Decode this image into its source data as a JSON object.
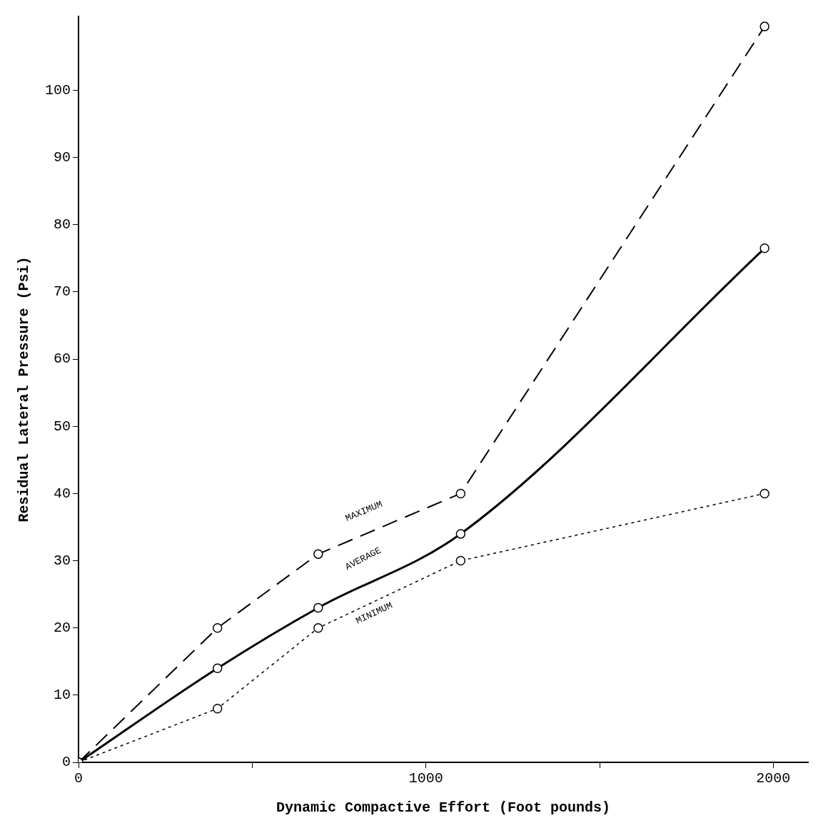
{
  "chart_data": {
    "type": "line",
    "xlabel": "Dynamic Compactive Effort (Foot pounds)",
    "ylabel": "Residual Lateral Pressure (Psi)",
    "xlim": [
      0,
      2100
    ],
    "xticks": [
      0,
      {
        "value": 500,
        "label": null
      },
      1000,
      {
        "value": 1500,
        "label": null
      },
      2000
    ],
    "ylim": [
      0,
      111
    ],
    "yticks": [
      0,
      10,
      20,
      30,
      40,
      50,
      60,
      70,
      80,
      90,
      100
    ],
    "grid": false,
    "legend": false,
    "marker": "circle",
    "series": [
      {
        "name": "MAXIMUM",
        "color": "#000000",
        "line_style": "dashed",
        "x": [
          0,
          400,
          690,
          1100,
          1975
        ],
        "values": [
          0,
          20,
          31,
          40,
          109.5
        ]
      },
      {
        "name": "AVERAGE",
        "color": "#000000",
        "line_style": "solid",
        "x": [
          0,
          400,
          690,
          1100,
          1975
        ],
        "values": [
          0,
          14,
          23,
          34,
          76.5
        ]
      },
      {
        "name": "MINIMUM",
        "color": "#000000",
        "line_style": "dotted",
        "x": [
          0,
          400,
          690,
          1100,
          1975
        ],
        "values": [
          0,
          8,
          20,
          30,
          40
        ]
      }
    ]
  }
}
